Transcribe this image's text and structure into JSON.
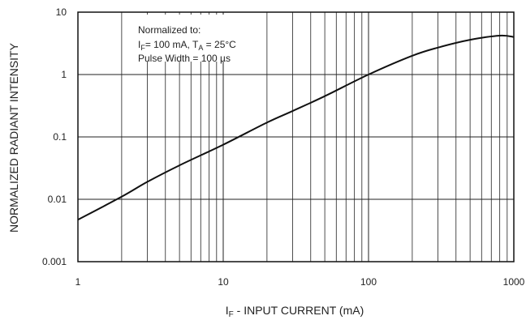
{
  "chart_data": {
    "type": "line",
    "xscale": "log",
    "yscale": "log",
    "xlim": [
      1,
      1000
    ],
    "ylim": [
      0.001,
      10
    ],
    "grid": true,
    "xlabel": {
      "main": "I",
      "sub": "F",
      "rest": " - INPUT CURRENT (mA)"
    },
    "ylabel": "NORMALIZED RADIANT INTENSITY",
    "x_ticks": [
      1,
      10,
      100,
      1000
    ],
    "x_tick_labels": [
      "1",
      "10",
      "100",
      "1000"
    ],
    "y_ticks": [
      0.001,
      0.01,
      0.1,
      1,
      10
    ],
    "y_tick_labels": [
      "0.001",
      "0.01",
      "0.1",
      "1",
      "10"
    ],
    "annotation": {
      "line1": "Normalized to:",
      "line2_a": "I",
      "line2_sub1": "F",
      "line2_b": "= 100 mA, T",
      "line2_sub2": "A",
      "line2_c": " = 25°C",
      "line3": "Pulse Width = 100 µs"
    },
    "series": [
      {
        "x": [
          1,
          2,
          3,
          5,
          10,
          20,
          30,
          50,
          100,
          200,
          300,
          500,
          800,
          1000
        ],
        "y": [
          0.0047,
          0.011,
          0.019,
          0.035,
          0.075,
          0.17,
          0.26,
          0.45,
          1.0,
          2.0,
          2.7,
          3.6,
          4.2,
          4.0
        ]
      }
    ]
  }
}
